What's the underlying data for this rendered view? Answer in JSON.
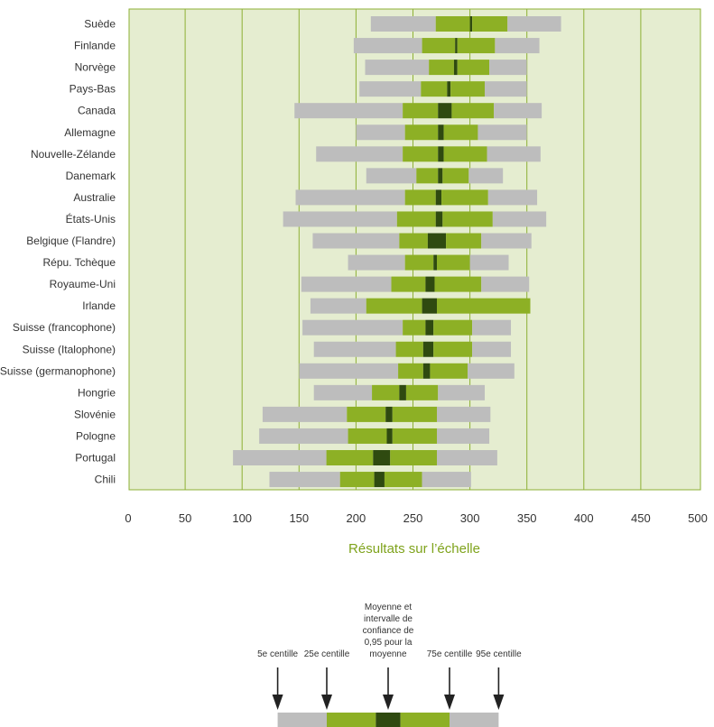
{
  "chart_data": {
    "type": "bar",
    "subtype": "percentile-range",
    "xlabel": "Résultats sur l’échelle",
    "xlim": [
      0,
      500
    ],
    "xticks": [
      0,
      50,
      100,
      150,
      200,
      250,
      300,
      350,
      400,
      450,
      500
    ],
    "grid": true,
    "colors": {
      "background": "#e5edd0",
      "grid": "#8db034",
      "outer": "#bdbdbd",
      "inner": "#8db025",
      "mean": "#2f4a10",
      "axis_title": "#7fa31c"
    },
    "columns": [
      "p5",
      "p25",
      "ci_low",
      "ci_high",
      "p75",
      "p95"
    ],
    "categories": [
      "Suède",
      "Finlande",
      "Norvège",
      "Pays-Bas",
      "Canada",
      "Allemagne",
      "Nouvelle-Zélande",
      "Danemark",
      "Australie",
      "États-Unis",
      "Belgique (Flandre)",
      "Répu. Tchèque",
      "Royaume-Uni",
      "Irlande",
      "Suisse (francophone)",
      "Suisse (Italophone)",
      "Suisse (germanophone)",
      "Hongrie",
      "Slovénie",
      "Pologne",
      "Portugal",
      "Chili"
    ],
    "rows": [
      [
        213,
        270,
        300,
        302,
        333,
        380
      ],
      [
        198,
        258,
        287,
        289,
        322,
        361
      ],
      [
        208,
        264,
        286,
        289,
        317,
        350
      ],
      [
        203,
        257,
        280,
        283,
        313,
        350
      ],
      [
        146,
        241,
        272,
        284,
        321,
        363
      ],
      [
        200,
        243,
        272,
        277,
        307,
        350
      ],
      [
        165,
        241,
        272,
        277,
        315,
        362
      ],
      [
        209,
        253,
        272,
        276,
        299,
        329
      ],
      [
        147,
        243,
        270,
        275,
        316,
        359
      ],
      [
        136,
        236,
        270,
        276,
        320,
        367
      ],
      [
        162,
        238,
        263,
        279,
        310,
        354
      ],
      [
        193,
        243,
        268,
        271,
        300,
        334
      ],
      [
        152,
        231,
        261,
        269,
        310,
        352
      ],
      [
        160,
        209,
        258,
        271,
        353,
        353
      ],
      [
        153,
        241,
        261,
        268,
        302,
        336
      ],
      [
        163,
        235,
        259,
        268,
        302,
        336
      ],
      [
        150,
        237,
        259,
        265,
        298,
        339
      ],
      [
        163,
        214,
        238,
        244,
        272,
        313
      ],
      [
        118,
        192,
        226,
        232,
        271,
        318
      ],
      [
        115,
        193,
        227,
        232,
        271,
        317
      ],
      [
        92,
        174,
        215,
        230,
        271,
        324
      ],
      [
        124,
        186,
        216,
        225,
        258,
        301
      ]
    ]
  },
  "key": {
    "labels": [
      "5e centille",
      "25e centille",
      "Moyenne et intervalle de confiance de 0,95 pour la moyenne",
      "75e centille",
      "95e centille"
    ],
    "sample": [
      5,
      25,
      45,
      55,
      75,
      95
    ],
    "sample_range": [
      0,
      100
    ]
  }
}
